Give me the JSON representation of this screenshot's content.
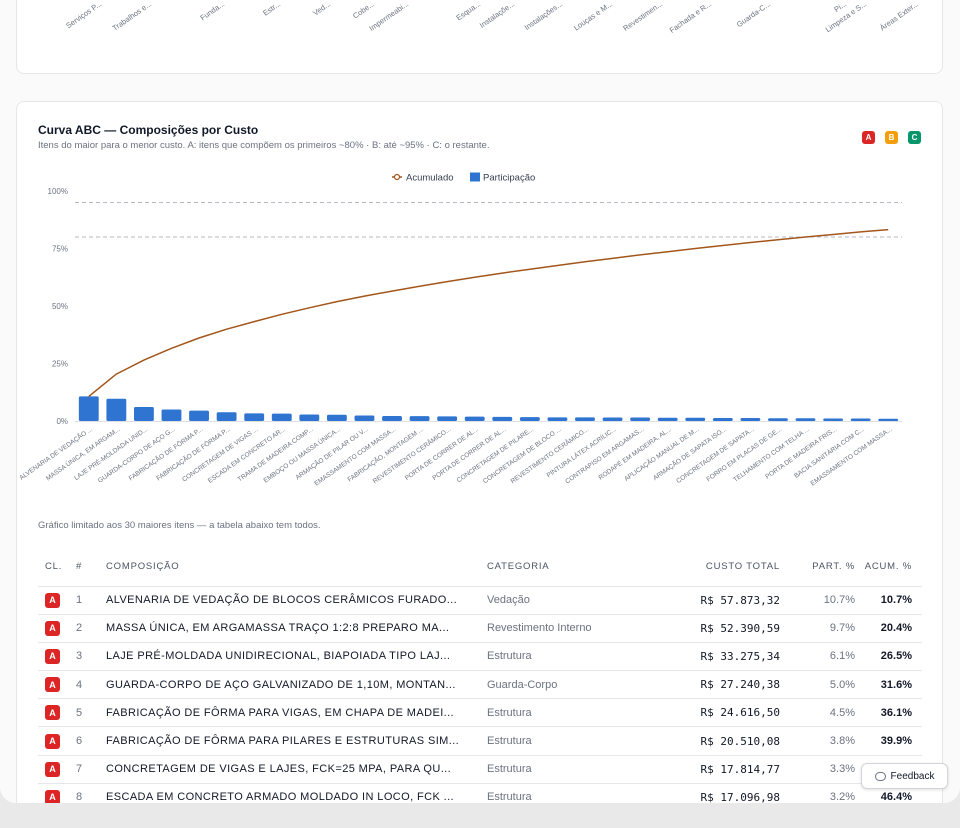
{
  "top_card": {
    "labels": [
      "Serviços P...",
      "Trabalhos e...",
      "Funda...",
      "Estr...",
      "Ved...",
      "Cobe...",
      "Impermeabi...",
      "Esqua...",
      "Instalaçõe...",
      "Instalações...",
      "Louças e M...",
      "Revestimen...",
      "Fachada e R...",
      "Guarda-C...",
      "Pi...",
      "Limpeza e S...",
      "Áreas Exter..."
    ]
  },
  "abc_card": {
    "title": "Curva ABC — Composições por Custo",
    "subtitle": "Itens do maior para o menor custo. A: itens que compõem os primeiros ~80% · B: até ~95% · C: o restante.",
    "badges": [
      "A",
      "B",
      "C"
    ],
    "colors": {
      "line": "#a3561a",
      "bar": "#2f74d0",
      "class_a": "#dc2626",
      "class_b": "#f59e0b",
      "class_c": "#059669"
    },
    "chart_note": "Gráfico limitado aos 30 maiores itens — a tabela abaixo tem todos.",
    "table": {
      "headers": {
        "cl": "CL.",
        "idx": "#",
        "comp": "COMPOSIÇÃO",
        "cat": "CATEGORIA",
        "cost": "CUSTO TOTAL",
        "part": "PART. %",
        "acum": "ACUM. %"
      },
      "rows": [
        {
          "cl": "A",
          "idx": "1",
          "comp": "ALVENARIA DE VEDAÇÃO DE BLOCOS CERÂMICOS FURADO...",
          "cat": "Vedação",
          "cost": "R$ 57.873,32",
          "part": "10.7%",
          "acum": "10.7%"
        },
        {
          "cl": "A",
          "idx": "2",
          "comp": "MASSA ÚNICA, EM ARGAMASSA TRAÇO 1:2:8 PREPARO MA...",
          "cat": "Revestimento Interno",
          "cost": "R$ 52.390,59",
          "part": "9.7%",
          "acum": "20.4%"
        },
        {
          "cl": "A",
          "idx": "3",
          "comp": "LAJE PRÉ-MOLDADA UNIDIRECIONAL, BIAPOIADA TIPO LAJ...",
          "cat": "Estrutura",
          "cost": "R$ 33.275,34",
          "part": "6.1%",
          "acum": "26.5%"
        },
        {
          "cl": "A",
          "idx": "4",
          "comp": "GUARDA-CORPO DE AÇO GALVANIZADO DE 1,10M, MONTAN...",
          "cat": "Guarda-Corpo",
          "cost": "R$ 27.240,38",
          "part": "5.0%",
          "acum": "31.6%"
        },
        {
          "cl": "A",
          "idx": "5",
          "comp": "FABRICAÇÃO DE FÔRMA PARA VIGAS, EM CHAPA DE MADEI...",
          "cat": "Estrutura",
          "cost": "R$ 24.616,50",
          "part": "4.5%",
          "acum": "36.1%"
        },
        {
          "cl": "A",
          "idx": "6",
          "comp": "FABRICAÇÃO DE FÔRMA PARA PILARES E ESTRUTURAS SIM...",
          "cat": "Estrutura",
          "cost": "R$ 20.510,08",
          "part": "3.8%",
          "acum": "39.9%"
        },
        {
          "cl": "A",
          "idx": "7",
          "comp": "CONCRETAGEM DE VIGAS E LAJES, FCK=25 MPA, PARA QU...",
          "cat": "Estrutura",
          "cost": "R$ 17.814,77",
          "part": "3.3%",
          "acum": "43.2%"
        },
        {
          "cl": "A",
          "idx": "8",
          "comp": "ESCADA EM CONCRETO ARMADO MOLDADO IN LOCO, FCK ...",
          "cat": "Estrutura",
          "cost": "R$ 17.096,98",
          "part": "3.2%",
          "acum": "46.4%"
        }
      ]
    }
  },
  "feedback_label": "Feedback",
  "chart_data": {
    "type": "bar",
    "legend": [
      "Acumulado",
      "Participação"
    ],
    "legend_position": "top-center",
    "yticks": [
      "100%",
      "75%",
      "50%",
      "25%",
      "0%"
    ],
    "ylim": [
      0,
      100
    ],
    "reference_lines": [
      80,
      95
    ],
    "categories": [
      "ALVENARIA DE VEDAÇÃO ...",
      "MASSA ÚNICA, EM ARGAM...",
      "LAJE PRÉ-MOLDADA UNID...",
      "GUARDA-CORPO DE AÇO G...",
      "FABRICAÇÃO DE FÔRMA P...",
      "FABRICAÇÃO DE FÔRMA P...",
      "CONCRETAGEM DE VIGAS ...",
      "ESCADA EM CONCRETO AR...",
      "TRAMA DE MADEIRA COMP...",
      "EMBOÇO OU MASSA ÚNICA...",
      "ARMAÇÃO DE PILAR OU V...",
      "EMASSAMENTO COM MASSA...",
      "FABRICAÇÃO, MONTAGEM ...",
      "REVESTIMENTO CERÂMICO...",
      "PORTA DE CORRER DE AL...",
      "PORTA DE CORRER DE AL...",
      "CONCRETAGEM DE PILARE...",
      "CONCRETAGEM DE BLOCO ...",
      "REVESTIMENTO CERÂMICO...",
      "PINTURA LÁTEX ACRÍLIC...",
      "CONTRAPISO EM ARGAMAS...",
      "RODAPÉ EM MADEIRA, AL...",
      "APLICAÇÃO MANUAL DE M...",
      "ARMAÇÃO DE SAPATA ISO...",
      "CONCRETAGEM DE SAPATA...",
      "FORRO EM PLACAS DE GE...",
      "TELHAMENTO COM TELHA ...",
      "PORTA DE MADEIRA FRIS...",
      "BACIA SANITÁRIA COM C...",
      "EMASSAMENTO COM MASSA..."
    ],
    "series": [
      {
        "name": "Participação",
        "values": [
          10.7,
          9.7,
          6.1,
          5.0,
          4.5,
          3.8,
          3.3,
          3.2,
          2.8,
          2.7,
          2.4,
          2.2,
          2.1,
          2.0,
          1.9,
          1.8,
          1.7,
          1.6,
          1.6,
          1.5,
          1.5,
          1.4,
          1.4,
          1.3,
          1.3,
          1.2,
          1.2,
          1.1,
          1.1,
          1.0
        ]
      },
      {
        "name": "Acumulado",
        "values": [
          10.7,
          20.4,
          26.5,
          31.6,
          36.1,
          39.9,
          43.2,
          46.4,
          49.2,
          51.9,
          54.3,
          56.5,
          58.6,
          60.6,
          62.5,
          64.3,
          66.0,
          67.6,
          69.2,
          70.7,
          72.2,
          73.6,
          75.0,
          76.3,
          77.6,
          78.8,
          80.0,
          81.1,
          82.2,
          83.2
        ]
      }
    ]
  }
}
